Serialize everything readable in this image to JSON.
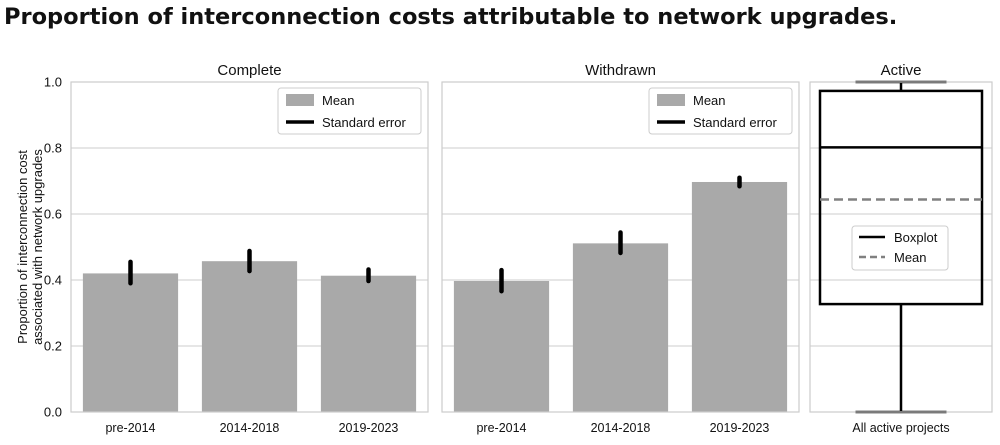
{
  "title": "Proportion of interconnection costs attributable to network upgrades.",
  "colors": {
    "bar": "#a9a9a9",
    "error": "#000000",
    "grid": "#cccccc",
    "box": "#000000",
    "mean_line": "#808080"
  },
  "chart_data": [
    {
      "type": "bar",
      "title": "Complete",
      "ylabel": "Proportion of interconnection cost associated with network upgrades",
      "ylabel_lines": [
        "Proportion of interconnection cost",
        "associated with network upgrades"
      ],
      "ylim": [
        0,
        1.0
      ],
      "yticks": [
        "0.0",
        "0.2",
        "0.4",
        "0.6",
        "0.8",
        "1.0"
      ],
      "grid": true,
      "legend": {
        "placement": "top-right",
        "entries": [
          "Mean",
          "Standard error"
        ]
      },
      "categories": [
        "pre-2014",
        "2014-2018",
        "2019-2023"
      ],
      "values": [
        0.42,
        0.457,
        0.413
      ],
      "error_low": [
        0.39,
        0.427,
        0.397
      ],
      "error_high": [
        0.455,
        0.488,
        0.432
      ]
    },
    {
      "type": "bar",
      "title": "Withdrawn",
      "ylim": [
        0,
        1.0
      ],
      "grid": true,
      "legend": {
        "placement": "top-right",
        "entries": [
          "Mean",
          "Standard error"
        ]
      },
      "categories": [
        "pre-2014",
        "2014-2018",
        "2019-2023"
      ],
      "values": [
        0.397,
        0.511,
        0.697
      ],
      "error_low": [
        0.366,
        0.482,
        0.684
      ],
      "error_high": [
        0.43,
        0.544,
        0.71
      ]
    },
    {
      "type": "box",
      "title": "Active",
      "ylim": [
        0,
        1.0
      ],
      "grid": true,
      "legend": {
        "placement": "center",
        "entries": [
          "Boxplot",
          "Mean"
        ]
      },
      "categories": [
        "All active projects"
      ],
      "box": {
        "whisker_low": 0.0,
        "q1": 0.327,
        "median": 0.802,
        "q3": 0.973,
        "whisker_high": 1.0,
        "mean": 0.644
      }
    }
  ]
}
